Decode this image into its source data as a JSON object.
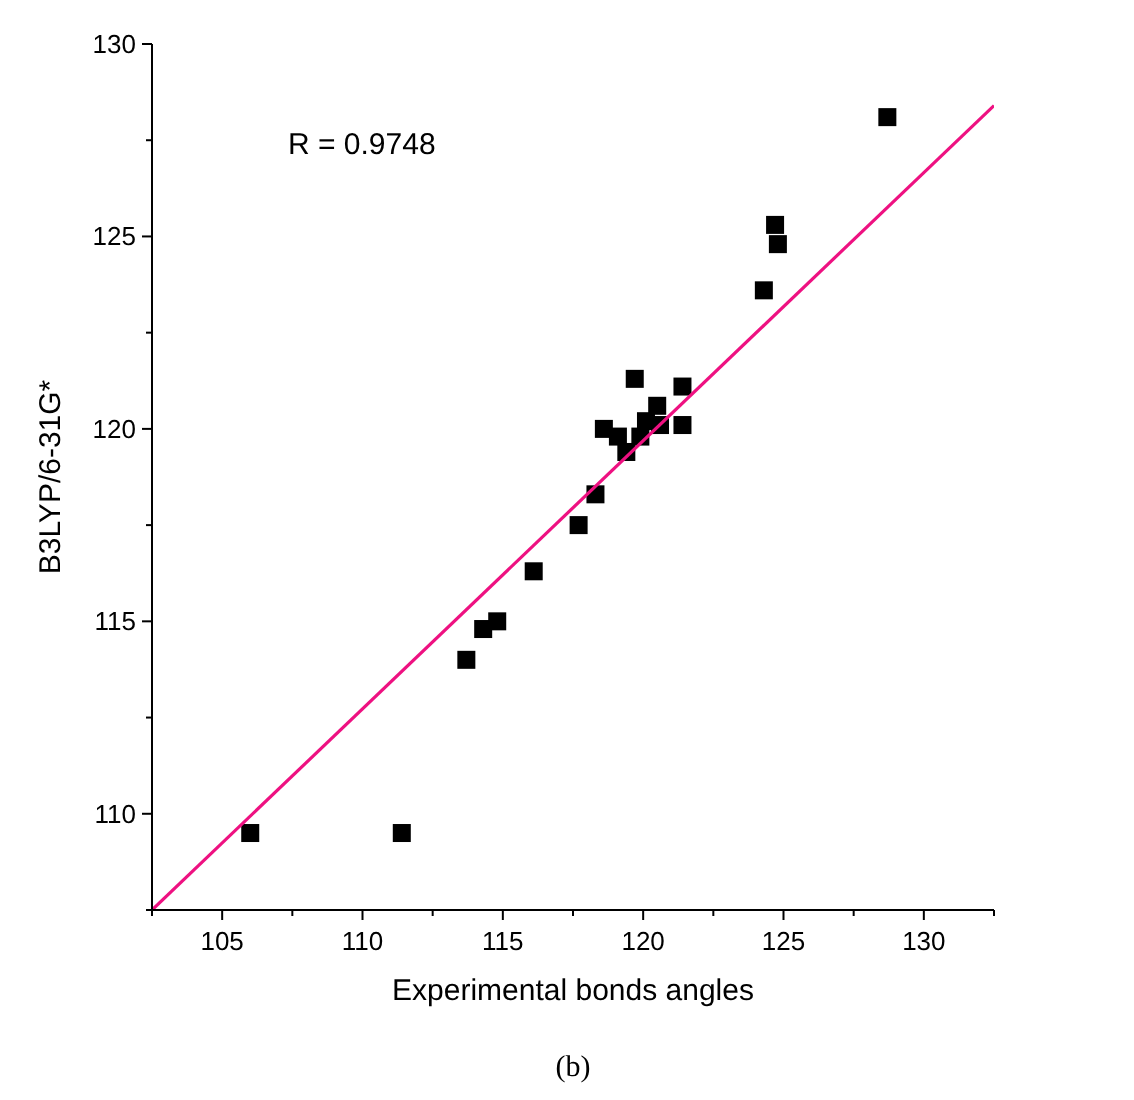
{
  "chart_data": {
    "type": "scatter",
    "xlabel": "Experimental bonds angles",
    "ylabel": "B3LYP/6-31G*",
    "annotations": [
      "R = 0.9748",
      "(b)"
    ],
    "xlim": [
      102.5,
      132.5
    ],
    "xticks": [
      {
        "value": 102.5,
        "label": null
      },
      105,
      {
        "value": 107.5,
        "label": null
      },
      110,
      {
        "value": 112.5,
        "label": null
      },
      115,
      {
        "value": 117.5,
        "label": null
      },
      120,
      {
        "value": 122.5,
        "label": null
      },
      125,
      {
        "value": 127.5,
        "label": null
      },
      130,
      {
        "value": 132.5,
        "label": null
      }
    ],
    "ylim": [
      107.5,
      130
    ],
    "yticks": [
      {
        "value": 107.5,
        "label": null
      },
      110,
      {
        "value": 112.5,
        "label": null
      },
      115,
      {
        "value": 117.5,
        "label": null
      },
      120,
      {
        "value": 122.5,
        "label": null
      },
      125,
      {
        "value": 127.5,
        "label": null
      },
      130
    ],
    "grid": false,
    "marker": "square",
    "series": [
      {
        "color": "#000000",
        "x": [
          106.0,
          111.4,
          113.7,
          114.3,
          114.8,
          116.1,
          117.7,
          118.3,
          118.6,
          119.1,
          119.4,
          119.7,
          119.9,
          120.1,
          120.5,
          120.6,
          121.4,
          121.4,
          124.3,
          124.7,
          124.8,
          128.7
        ],
        "values": [
          109.5,
          109.5,
          114.0,
          114.8,
          115.0,
          116.3,
          117.5,
          118.3,
          120.0,
          119.8,
          119.4,
          121.3,
          119.8,
          120.2,
          120.6,
          120.1,
          121.1,
          120.1,
          123.6,
          125.3,
          124.8,
          128.1
        ]
      },
      {
        "type": "line",
        "color": "#ee1181",
        "line_style": "solid",
        "marker": "none",
        "x": [
          102.5,
          132.5
        ],
        "values": [
          107.5,
          128.4
        ]
      }
    ]
  }
}
